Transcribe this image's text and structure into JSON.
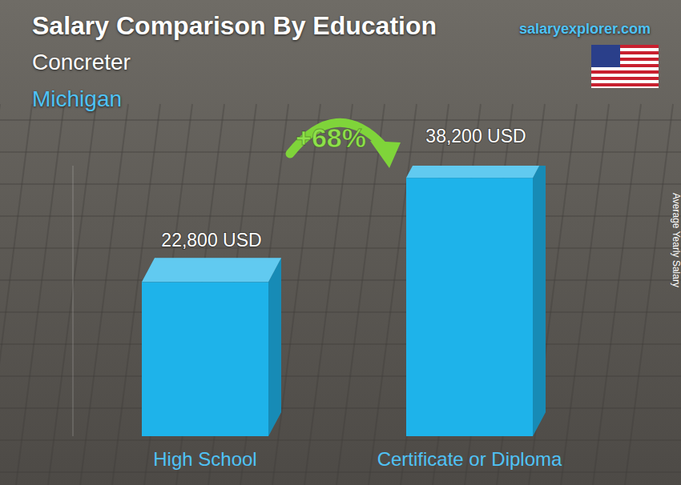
{
  "chart_data": {
    "type": "bar",
    "title": "Salary Comparison By Education",
    "subtitle": [
      "Concreter",
      "Michigan"
    ],
    "source": "salaryexplorer.com",
    "ylabel": "Average Yearly Salary",
    "annotations": [
      "+68%"
    ],
    "categories": [
      "High School",
      "Certificate or Diploma"
    ],
    "values": [
      22800,
      38200
    ],
    "value_labels": [
      "22,800 USD",
      "38,200 USD"
    ],
    "color": "#1eb3ea",
    "ylim": [
      0,
      40000
    ],
    "data_labels": true,
    "tick_labels": "x",
    "grid": false
  }
}
